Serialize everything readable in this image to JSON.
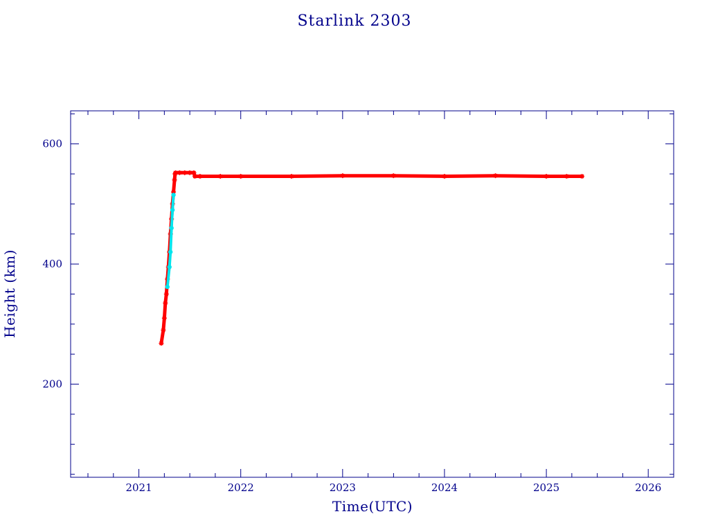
{
  "chart_data": {
    "type": "scatter",
    "title": "Starlink 2303",
    "xlabel": "Time(UTC)",
    "ylabel": "Height (km)",
    "xlim": [
      2020.33,
      2026.25
    ],
    "ylim": [
      45,
      655
    ],
    "xticks": [
      2021,
      2022,
      2023,
      2024,
      2025,
      2026
    ],
    "xtick_labels": [
      "2021",
      "2022",
      "2023",
      "2024",
      "2025",
      "2026"
    ],
    "yticks": [
      200,
      400,
      600
    ],
    "ytick_labels": [
      "200",
      "400",
      "600"
    ],
    "grid": false,
    "legend": "none",
    "colors": {
      "frame": "#00008B",
      "text": "#00008B"
    },
    "series": [
      {
        "color": "#ff0000",
        "marker": "star",
        "x": [
          2021.22,
          2021.24,
          2021.25,
          2021.26,
          2021.27,
          2021.28,
          2021.29,
          2021.3,
          2021.31,
          2021.32,
          2021.33,
          2021.34,
          2021.35,
          2021.355,
          2021.36,
          2021.4,
          2021.45,
          2021.5,
          2021.54,
          2021.55,
          2021.6,
          2021.8,
          2022.0,
          2022.5,
          2023.0,
          2023.5,
          2024.0,
          2024.5,
          2025.0,
          2025.2,
          2025.35
        ],
        "y": [
          268,
          290,
          310,
          335,
          350,
          375,
          395,
          420,
          450,
          475,
          500,
          520,
          540,
          550,
          552,
          552,
          552,
          552,
          552,
          546,
          546,
          546,
          546,
          546,
          547,
          547,
          546,
          547,
          546,
          546,
          546
        ]
      },
      {
        "color": "#00e5ee",
        "marker": "dot",
        "x": [
          2021.28,
          2021.3,
          2021.31,
          2021.32,
          2021.33,
          2021.34
        ],
        "y": [
          362,
          395,
          420,
          460,
          490,
          515
        ]
      }
    ]
  }
}
